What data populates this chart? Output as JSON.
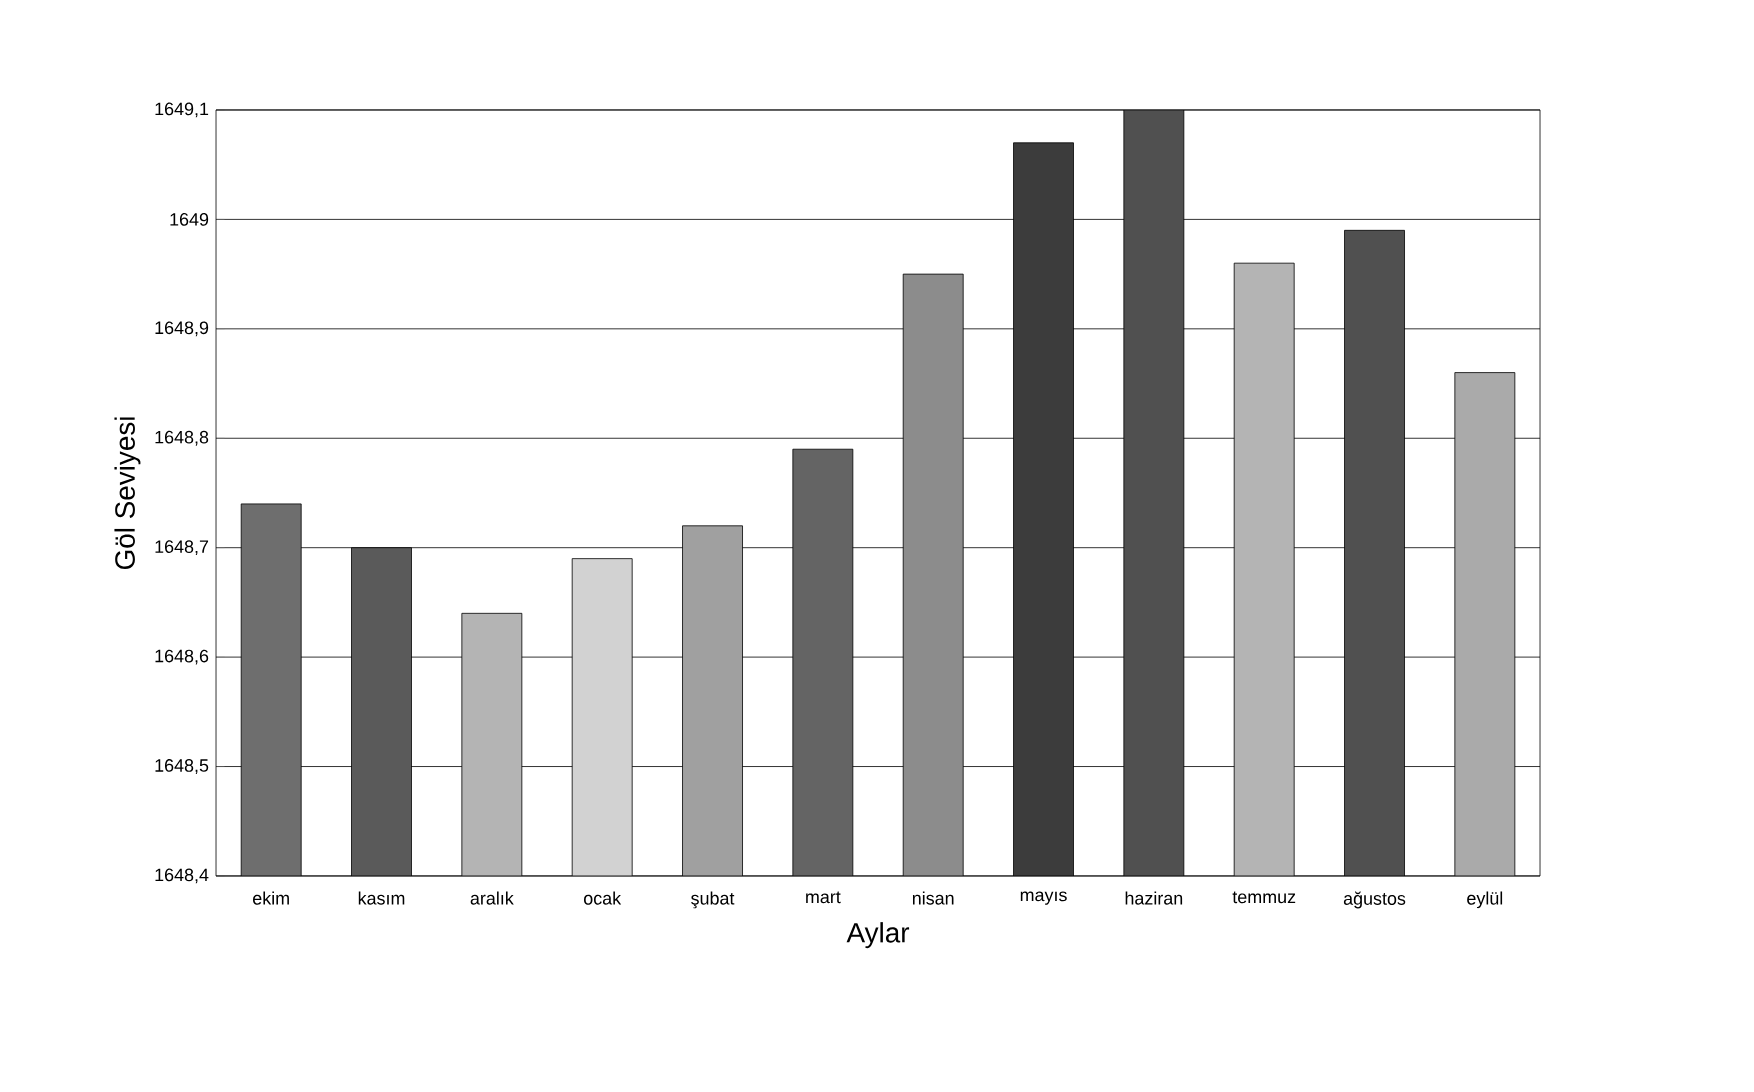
{
  "chart_data": {
    "type": "bar",
    "xlabel": "Aylar",
    "ylabel": "Göl Seviyesi",
    "categories": [
      "ekim",
      "kasım",
      "aralık",
      "ocak",
      "şubat",
      "mart",
      "nisan",
      "mayıs",
      "haziran",
      "temmuz",
      "ağustos",
      "eylül"
    ],
    "values": [
      1648.74,
      1648.7,
      1648.64,
      1648.69,
      1648.72,
      1648.79,
      1648.95,
      1649.07,
      1649.1,
      1648.96,
      1648.99,
      1648.86
    ],
    "colors": [
      "#6e6e6e",
      "#5a5a5a",
      "#b4b4b4",
      "#d2d2d2",
      "#a0a0a0",
      "#646464",
      "#8c8c8c",
      "#3c3c3c",
      "#505050",
      "#b4b4b4",
      "#505050",
      "#aaaaaa"
    ],
    "ylim": [
      1648.4,
      1649.1
    ],
    "yticks": [
      {
        "value": 1648.4,
        "label": "1648,4"
      },
      {
        "value": 1648.5,
        "label": "1648,5"
      },
      {
        "value": 1648.6,
        "label": "1648,6"
      },
      {
        "value": 1648.7,
        "label": "1648,7"
      },
      {
        "value": 1648.8,
        "label": "1648,8"
      },
      {
        "value": 1648.9,
        "label": "1648,9"
      },
      {
        "value": 1649,
        "label": "1649"
      },
      {
        "value": 1649.1,
        "label": "1649,1"
      }
    ],
    "grid": "y"
  }
}
